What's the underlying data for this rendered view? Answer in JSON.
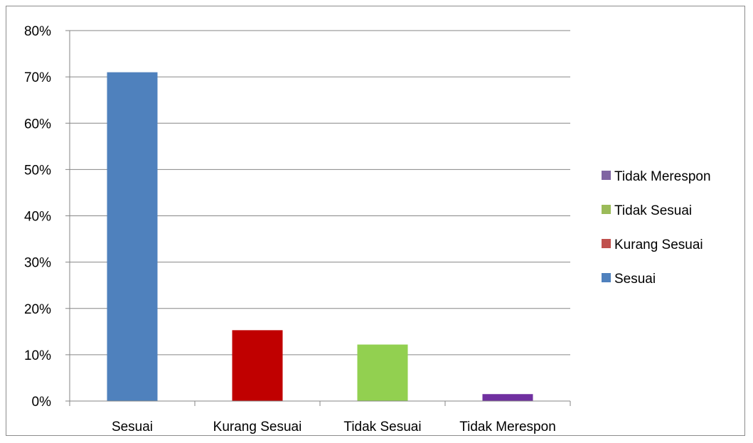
{
  "chart_data": {
    "type": "bar",
    "categories": [
      "Sesuai",
      "Kurang Sesuai",
      "Tidak Sesuai",
      "Tidak Merespon"
    ],
    "values": [
      71,
      15.3,
      12.2,
      1.5
    ],
    "colors": [
      "#4F81BD",
      "#C00000",
      "#92D050",
      "#7030A0"
    ],
    "legend_colors": [
      "#4F81BD",
      "#C0504D",
      "#9BBB59",
      "#8064A2"
    ],
    "y_ticks": [
      "0%",
      "10%",
      "20%",
      "30%",
      "40%",
      "50%",
      "60%",
      "70%",
      "80%"
    ],
    "ylim": [
      0,
      80
    ],
    "grid": true,
    "legend_placement": "right",
    "legend": [
      "Tidak Merespon",
      "Tidak Sesuai",
      "Kurang Sesuai",
      "Sesuai"
    ]
  }
}
